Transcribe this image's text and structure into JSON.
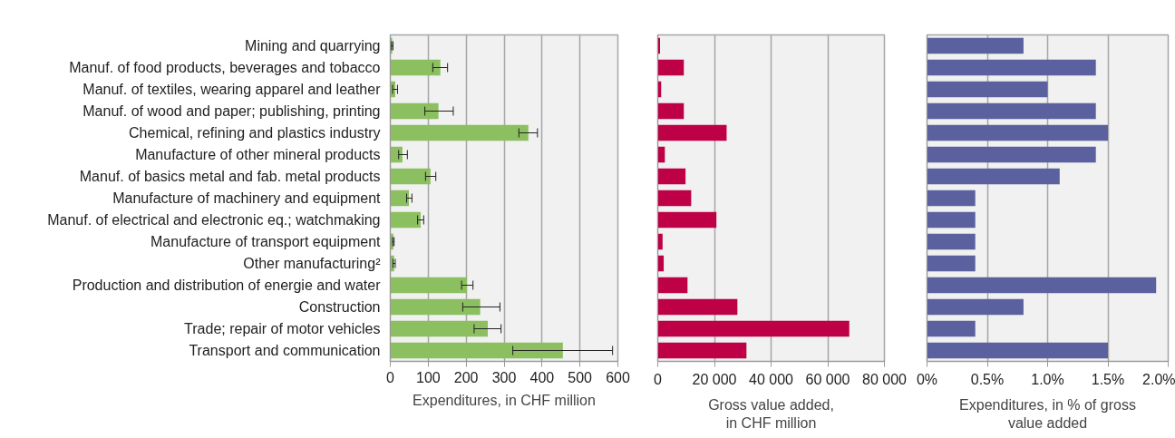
{
  "chart_data": [
    {
      "type": "bar",
      "orientation": "horizontal",
      "xlabel": "Expenditures, in CHF million",
      "categories": [
        "Mining and quarrying",
        "Manuf. of food products, beverages and tobacco",
        "Manuf. of textiles, wearing apparel and leather",
        "Manuf. of wood and paper; publishing, printing",
        "Chemical, refining and plastics industry",
        "Manufacture of other mineral products",
        "Manuf. of basics metal and fab. metal products",
        "Manufacture of machinery and equipment",
        "Manuf. of electrical and electronic eq.; watchmaking",
        "Manufacture of transport equipment",
        "Other manufacturing²",
        "Production and distribution of energie and water",
        "Construction",
        "Trade; repair of motor vehicles",
        "Transport and communication"
      ],
      "values": [
        5,
        132,
        13,
        127,
        364,
        32,
        106,
        49,
        80,
        8,
        10,
        202,
        237,
        257,
        455
      ],
      "errors": [
        [
          3,
          7
        ],
        [
          112,
          151
        ],
        [
          6,
          19
        ],
        [
          91,
          166
        ],
        [
          339,
          388
        ],
        [
          22,
          45
        ],
        [
          93,
          120
        ],
        [
          43,
          57
        ],
        [
          72,
          88
        ],
        [
          6,
          10
        ],
        [
          7,
          13
        ],
        [
          188,
          218
        ],
        [
          191,
          289
        ],
        [
          221,
          292
        ],
        [
          323,
          586
        ]
      ],
      "color": "#8cbf5f",
      "xlim": [
        0,
        600
      ],
      "xticks": [
        0,
        100,
        200,
        300,
        400,
        500,
        600
      ],
      "grid": "x"
    },
    {
      "type": "bar",
      "orientation": "horizontal",
      "xlabel": "Gross value added,\nin CHF million",
      "categories": [
        null,
        null,
        null,
        null,
        null,
        null,
        null,
        null,
        null,
        null,
        null,
        null,
        null,
        null,
        null
      ],
      "values": [
        800,
        9200,
        1200,
        9200,
        24300,
        2500,
        9800,
        11800,
        20700,
        1700,
        2100,
        10500,
        28100,
        67600,
        31300
      ],
      "color": "#be0046",
      "xlim": [
        0,
        80000
      ],
      "xticks": [
        0,
        {
          "value": 20000,
          "label": "20 000"
        },
        {
          "value": 40000,
          "label": "40 000"
        },
        {
          "value": 60000,
          "label": "60 000"
        },
        {
          "value": 80000,
          "label": "80 000"
        }
      ],
      "grid": "x",
      "tick_labels": "x"
    },
    {
      "type": "bar",
      "orientation": "horizontal",
      "xlabel": "Expenditures, in % of gross\nvalue added",
      "categories": [
        null,
        null,
        null,
        null,
        null,
        null,
        null,
        null,
        null,
        null,
        null,
        null,
        null,
        null,
        null
      ],
      "values": [
        0.8,
        1.4,
        1.0,
        1.4,
        1.5,
        1.4,
        1.1,
        0.4,
        0.4,
        0.4,
        0.4,
        1.9,
        0.8,
        0.4,
        1.5
      ],
      "color": "#5a619e",
      "xlim": [
        0,
        2
      ],
      "xticks": [
        {
          "value": 0,
          "label": "0%"
        },
        {
          "value": 0.5,
          "label": "0.5%"
        },
        {
          "value": 1,
          "label": "1.0%"
        },
        {
          "value": 1.5,
          "label": "1.5%"
        },
        {
          "value": 2,
          "label": "2.0%"
        }
      ],
      "grid": "x",
      "tick_labels": "x"
    }
  ]
}
